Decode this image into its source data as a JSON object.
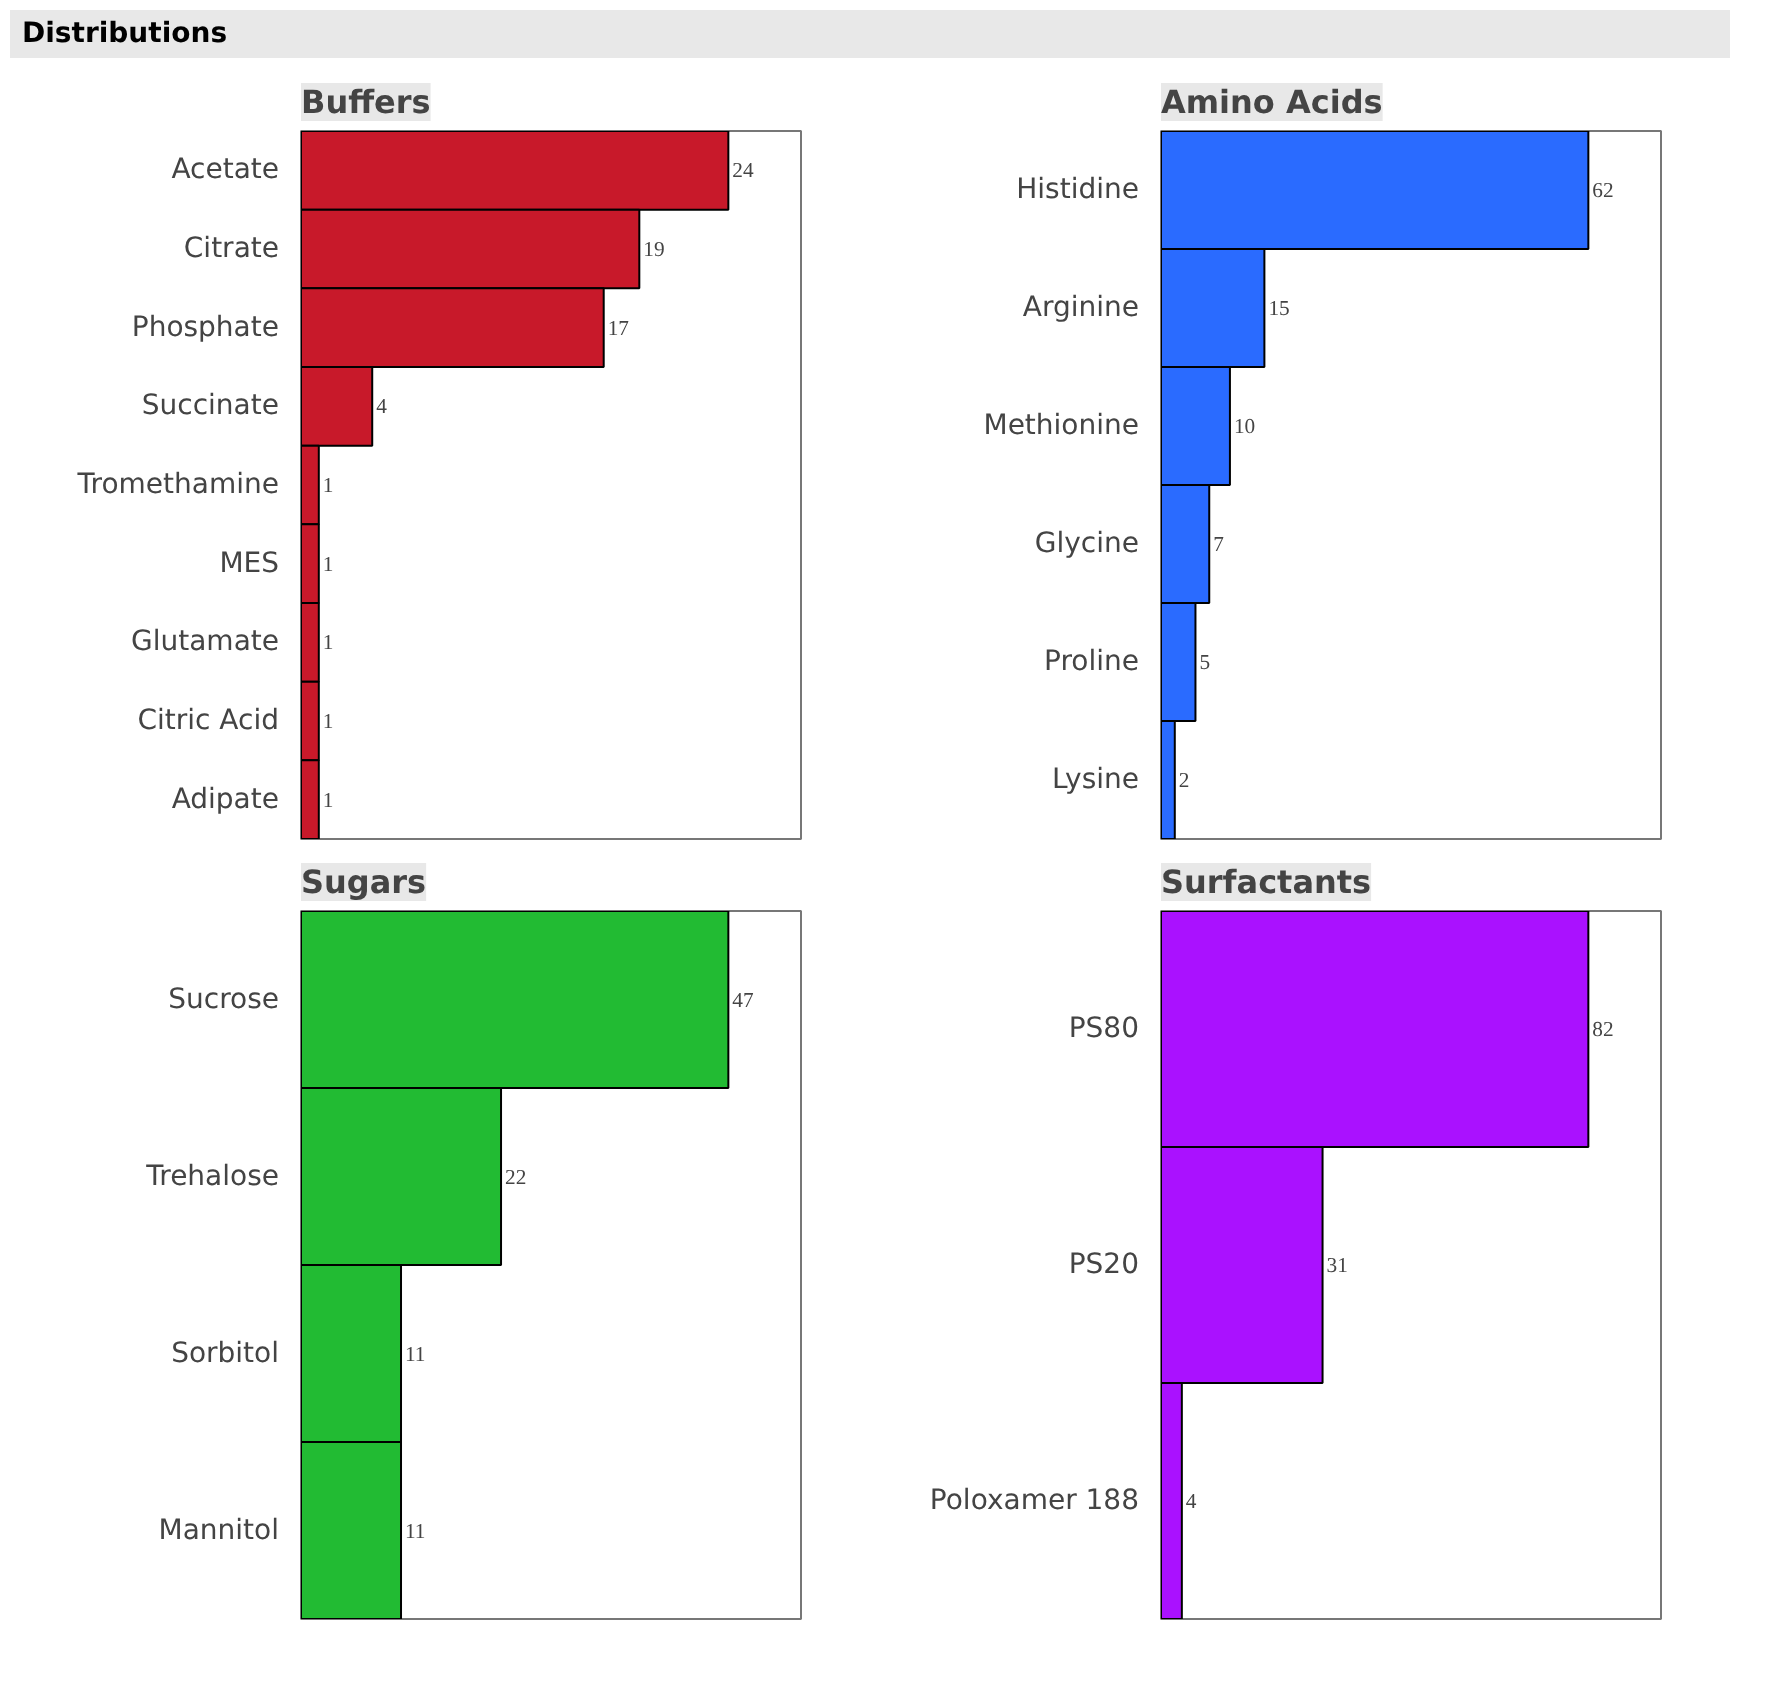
{
  "chart_data": [
    {
      "type": "bar",
      "orientation": "horizontal",
      "title": "Buffers",
      "annotations": [
        "Distributions"
      ],
      "categories": [
        "Acetate",
        "Citrate",
        "Phosphate",
        "Succinate",
        "Tromethamine",
        "MES",
        "Glutamate",
        "Citric Acid",
        "Adipate"
      ],
      "values": [
        24,
        19,
        17,
        4,
        1,
        1,
        1,
        1,
        1
      ],
      "color": "#c8192a",
      "data_labels": true
    },
    {
      "type": "bar",
      "orientation": "horizontal",
      "title": "Amino Acids",
      "categories": [
        "Histidine",
        "Arginine",
        "Methionine",
        "Glycine",
        "Proline",
        "Lysine"
      ],
      "values": [
        62,
        15,
        10,
        7,
        5,
        2
      ],
      "color": "#2a6bff",
      "data_labels": true
    },
    {
      "type": "bar",
      "orientation": "horizontal",
      "title": "Sugars",
      "categories": [
        "Sucrose",
        "Trehalose",
        "Sorbitol",
        "Mannitol"
      ],
      "values": [
        47,
        22,
        11,
        11
      ],
      "color": "#22bb33",
      "data_labels": true
    },
    {
      "type": "bar",
      "orientation": "horizontal",
      "title": "Surfactants",
      "categories": [
        "PS80",
        "PS20",
        "Poloxamer 188"
      ],
      "values": [
        82,
        31,
        4
      ],
      "color": "#aa11ff",
      "data_labels": true
    }
  ]
}
